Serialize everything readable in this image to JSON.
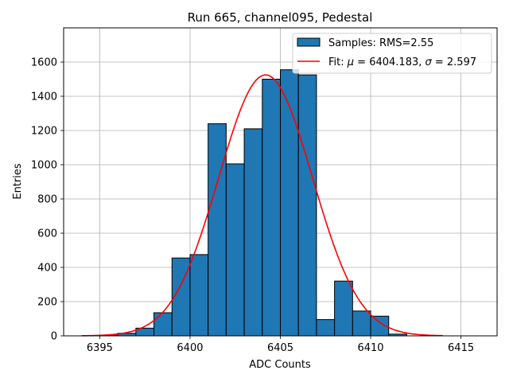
{
  "chart_data": {
    "type": "bar",
    "title": "Run 665, channel095, Pedestal",
    "xlabel": "ADC Counts",
    "ylabel": "Entries",
    "xlim": [
      6393,
      6417
    ],
    "ylim": [
      0,
      1800
    ],
    "xticks": [
      6395,
      6400,
      6405,
      6410,
      6415
    ],
    "yticks": [
      0,
      200,
      400,
      600,
      800,
      1000,
      1200,
      1400,
      1600
    ],
    "grid": true,
    "legend_position": "upper right",
    "histogram": {
      "name": "Samples: RMS=2.55",
      "color": "#1f77b4",
      "edgecolor": "#000000",
      "bin_edges": [
        6395,
        6396,
        6397,
        6398,
        6399,
        6400,
        6401,
        6402,
        6403,
        6404,
        6405,
        6406,
        6407,
        6408,
        6409,
        6410,
        6411,
        6412
      ],
      "values": [
        4,
        15,
        45,
        135,
        455,
        475,
        1240,
        1005,
        1210,
        1500,
        1555,
        1525,
        95,
        320,
        145,
        115,
        10
      ]
    },
    "fit": {
      "name_prefix": "Fit: ",
      "name_rest": " = 6404.183, ",
      "name_tail": " = 2.597",
      "mu_symbol": "μ",
      "sigma_symbol": "σ",
      "color": "#ff0000",
      "mu": 6404.183,
      "sigma": 2.597,
      "amplitude": 1525,
      "x_range": [
        6394,
        6414
      ]
    }
  }
}
